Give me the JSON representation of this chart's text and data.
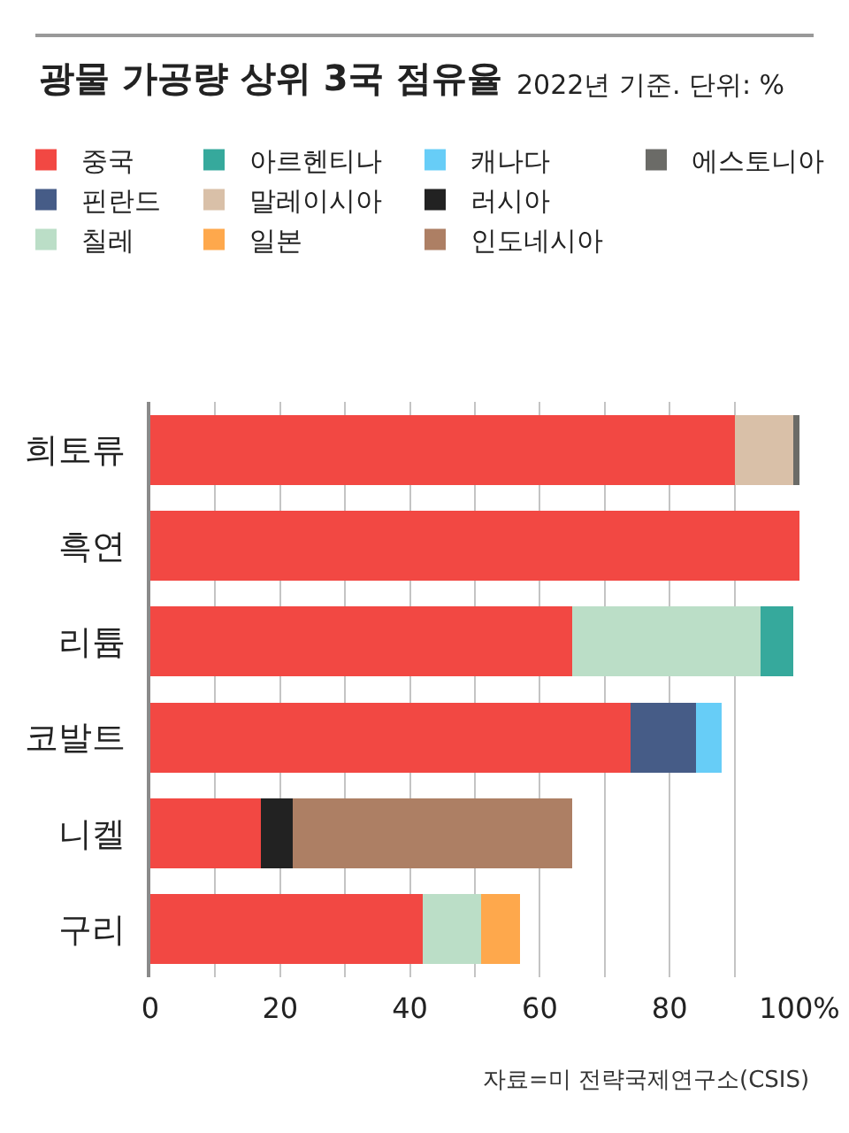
{
  "chart_data": {
    "type": "bar",
    "orientation": "horizontal",
    "stacked": true,
    "title": "광물 가공량 상위 3국 점유율",
    "subtitle": "2022년 기준. 단위: %",
    "categories": [
      "희토류",
      "흑연",
      "리튬",
      "코발트",
      "니켈",
      "구리"
    ],
    "series": [
      {
        "name": "중국",
        "color": "#f24843",
        "values": [
          90,
          100,
          65,
          74,
          17,
          42
        ]
      },
      {
        "name": "핀란드",
        "color": "#465c87",
        "values": [
          null,
          null,
          null,
          10,
          null,
          null
        ]
      },
      {
        "name": "칠레",
        "color": "#bbdec7",
        "values": [
          null,
          null,
          29,
          null,
          null,
          9
        ]
      },
      {
        "name": "아르헨티나",
        "color": "#36a99c",
        "values": [
          null,
          null,
          5,
          null,
          null,
          null
        ]
      },
      {
        "name": "말레이시아",
        "color": "#d9c0a8",
        "values": [
          9,
          null,
          null,
          null,
          null,
          null
        ]
      },
      {
        "name": "일본",
        "color": "#fea84c",
        "values": [
          null,
          null,
          null,
          null,
          null,
          6
        ]
      },
      {
        "name": "캐나다",
        "color": "#67cdf7",
        "values": [
          null,
          null,
          null,
          4,
          null,
          null
        ]
      },
      {
        "name": "러시아",
        "color": "#222222",
        "values": [
          null,
          null,
          null,
          null,
          5,
          null
        ]
      },
      {
        "name": "인도네시아",
        "color": "#ad7f64",
        "values": [
          null,
          null,
          null,
          null,
          43,
          null
        ]
      },
      {
        "name": "에스토니아",
        "color": "#6b6b67",
        "values": [
          1,
          null,
          null,
          null,
          null,
          null
        ]
      }
    ],
    "xlim": [
      0,
      100
    ],
    "xticks": [
      0,
      {
        "value": 10,
        "label": null
      },
      20,
      {
        "value": 30,
        "label": null
      },
      40,
      {
        "value": 50,
        "label": null
      },
      60,
      {
        "value": 70,
        "label": null
      },
      80,
      {
        "value": 90,
        "label": null
      },
      {
        "value": 100,
        "label": "100%"
      }
    ],
    "grid": "x",
    "legend": "top",
    "annotations": [
      "자료=미 전략국제연구소(CSIS)"
    ]
  }
}
